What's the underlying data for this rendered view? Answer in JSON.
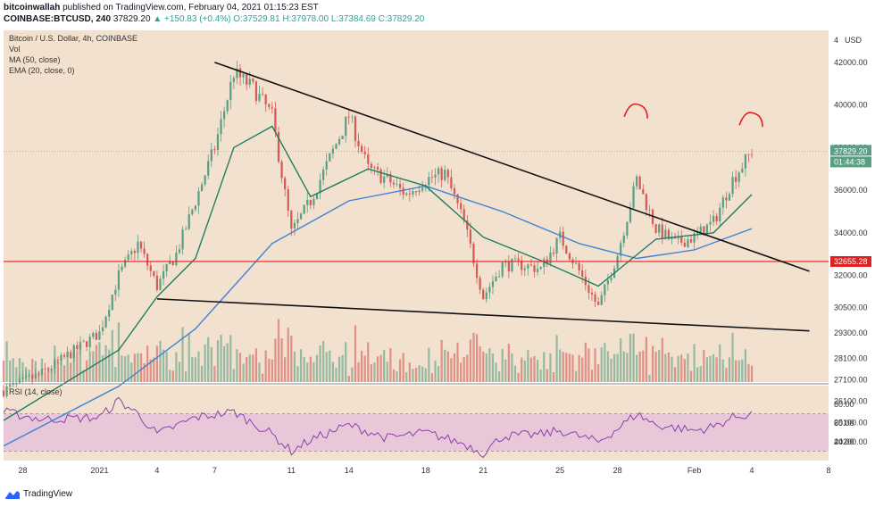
{
  "header": {
    "line1_user": "bitcoinwallah",
    "line1_rest": "published on TradingView.com, February 04, 2021 01:15:23 EST",
    "symbol": "COINBASE:BTCUSD, 240",
    "last": "37829.20",
    "change": "▲ +150.83 (+0.4%)",
    "ohlc": "O:37529.81 H:37978.00 L:37384.69 C:37829.20"
  },
  "legend": {
    "title": "Bitcoin / U.S. Dollar, 4h, COINBASE",
    "vol": "Vol",
    "ma": "MA (50, close)",
    "ema": "EMA (20, close, 0)",
    "rsi": "RSI (14, close)"
  },
  "axis": {
    "currency": "USD",
    "price_ticks": [
      "42000.00",
      "40000.00",
      "38000.00",
      "36000.00",
      "34000.00",
      "32000.00",
      "30500.00",
      "29300.00",
      "28100.00",
      "27100.00",
      "26100.00",
      "25100.00",
      "24200.00"
    ],
    "rsi_ticks": [
      "80.00",
      "60.00",
      "40.00"
    ],
    "x_ticks": [
      "28",
      "2021",
      "4",
      "7",
      "11",
      "14",
      "18",
      "21",
      "25",
      "28",
      "Feb",
      "4",
      "8"
    ],
    "top_label": "4",
    "price_tag": "37829.20",
    "countdown_tag": "01:44:38",
    "support_tag": "32655.28"
  },
  "footer": {
    "brand": "TradingView"
  },
  "colors": {
    "panel_bg": "#f3e1cf",
    "up": "#5a9e84",
    "down": "#d45a55",
    "ma": "#3d82d6",
    "ema": "#1e7e63",
    "rsi": "#8a3fae",
    "rsi_band": "#e8c8d8",
    "support": "#e02020",
    "trendline": "#111111",
    "annotation": "#e02020"
  },
  "chart_data": {
    "type": "candlestick",
    "title": "Bitcoin / U.S. Dollar, 4h, COINBASE",
    "interval": "4h",
    "x_range": [
      "2020-12-27",
      "2021-02-08"
    ],
    "y_range": [
      27000,
      43500
    ],
    "last_price": 37829.2,
    "support_level": 32655.28,
    "close_path": [
      [
        "2020-12-27",
        26600
      ],
      [
        "2020-12-29",
        27400
      ],
      [
        "2021-01-01",
        29300
      ],
      [
        "2021-01-02",
        32000
      ],
      [
        "2021-01-03",
        33500
      ],
      [
        "2021-01-04",
        31500
      ],
      [
        "2021-01-05",
        33000
      ],
      [
        "2021-01-06",
        35500
      ],
      [
        "2021-01-07",
        38000
      ],
      [
        "2021-01-08",
        41500
      ],
      [
        "2021-01-09",
        40800
      ],
      [
        "2021-01-10",
        39500
      ],
      [
        "2021-01-11",
        34000
      ],
      [
        "2021-01-12",
        35500
      ],
      [
        "2021-01-13",
        37500
      ],
      [
        "2021-01-14",
        39500
      ],
      [
        "2021-01-15",
        37000
      ],
      [
        "2021-01-16",
        36500
      ],
      [
        "2021-01-17",
        35800
      ],
      [
        "2021-01-18",
        36500
      ],
      [
        "2021-01-19",
        36800
      ],
      [
        "2021-01-20",
        34500
      ],
      [
        "2021-01-21",
        31000
      ],
      [
        "2021-01-22",
        32500
      ],
      [
        "2021-01-23",
        32500
      ],
      [
        "2021-01-24",
        32300
      ],
      [
        "2021-01-25",
        33800
      ],
      [
        "2021-01-26",
        32200
      ],
      [
        "2021-01-27",
        30500
      ],
      [
        "2021-01-28",
        33000
      ],
      [
        "2021-01-29",
        36500
      ],
      [
        "2021-01-30",
        34200
      ],
      [
        "2021-01-31",
        33500
      ],
      [
        "2021-02-01",
        33800
      ],
      [
        "2021-02-02",
        34500
      ],
      [
        "2021-02-03",
        36500
      ],
      [
        "2021-02-04",
        37829.2
      ]
    ],
    "moving_averages": [
      {
        "name": "MA (50, close)",
        "points": [
          [
            "2020-12-27",
            24000
          ],
          [
            "2021-01-02",
            26800
          ],
          [
            "2021-01-06",
            29500
          ],
          [
            "2021-01-10",
            33500
          ],
          [
            "2021-01-14",
            35500
          ],
          [
            "2021-01-18",
            36200
          ],
          [
            "2021-01-22",
            35000
          ],
          [
            "2021-01-26",
            33500
          ],
          [
            "2021-01-29",
            32800
          ],
          [
            "2021-02-01",
            33200
          ],
          [
            "2021-02-04",
            34200
          ]
        ]
      },
      {
        "name": "EMA (20, close, 0)",
        "points": [
          [
            "2020-12-27",
            25200
          ],
          [
            "2021-01-02",
            28500
          ],
          [
            "2021-01-04",
            31000
          ],
          [
            "2021-01-06",
            32800
          ],
          [
            "2021-01-08",
            38000
          ],
          [
            "2021-01-10",
            39000
          ],
          [
            "2021-01-12",
            35700
          ],
          [
            "2021-01-15",
            37000
          ],
          [
            "2021-01-18",
            36200
          ],
          [
            "2021-01-21",
            33800
          ],
          [
            "2021-01-24",
            32700
          ],
          [
            "2021-01-27",
            31500
          ],
          [
            "2021-01-30",
            33700
          ],
          [
            "2021-02-02",
            34000
          ],
          [
            "2021-02-04",
            35800
          ]
        ]
      }
    ],
    "trendlines": [
      {
        "name": "upper",
        "from": [
          "2021-01-07",
          42000
        ],
        "to": [
          "2021-02-07",
          32200
        ]
      },
      {
        "name": "lower",
        "from": [
          "2021-01-04",
          30900
        ],
        "to": [
          "2021-02-07",
          29400
        ]
      }
    ],
    "rsi": {
      "name": "RSI (14, close)",
      "y_range": [
        20,
        100
      ],
      "band": [
        30,
        70
      ],
      "points": [
        [
          "2020-12-27",
          72
        ],
        [
          "2020-12-29",
          64
        ],
        [
          "2021-01-01",
          66
        ],
        [
          "2021-01-02",
          84
        ],
        [
          "2021-01-03",
          70
        ],
        [
          "2021-01-04",
          48
        ],
        [
          "2021-01-06",
          66
        ],
        [
          "2021-01-08",
          72
        ],
        [
          "2021-01-10",
          48
        ],
        [
          "2021-01-11",
          30
        ],
        [
          "2021-01-12",
          42
        ],
        [
          "2021-01-14",
          58
        ],
        [
          "2021-01-16",
          44
        ],
        [
          "2021-01-18",
          50
        ],
        [
          "2021-01-20",
          38
        ],
        [
          "2021-01-21",
          28
        ],
        [
          "2021-01-22",
          46
        ],
        [
          "2021-01-24",
          48
        ],
        [
          "2021-01-25",
          52
        ],
        [
          "2021-01-27",
          40
        ],
        [
          "2021-01-28",
          54
        ],
        [
          "2021-01-29",
          70
        ],
        [
          "2021-01-30",
          58
        ],
        [
          "2021-02-01",
          52
        ],
        [
          "2021-02-02",
          56
        ],
        [
          "2021-02-03",
          66
        ],
        [
          "2021-02-04",
          70
        ]
      ]
    }
  }
}
